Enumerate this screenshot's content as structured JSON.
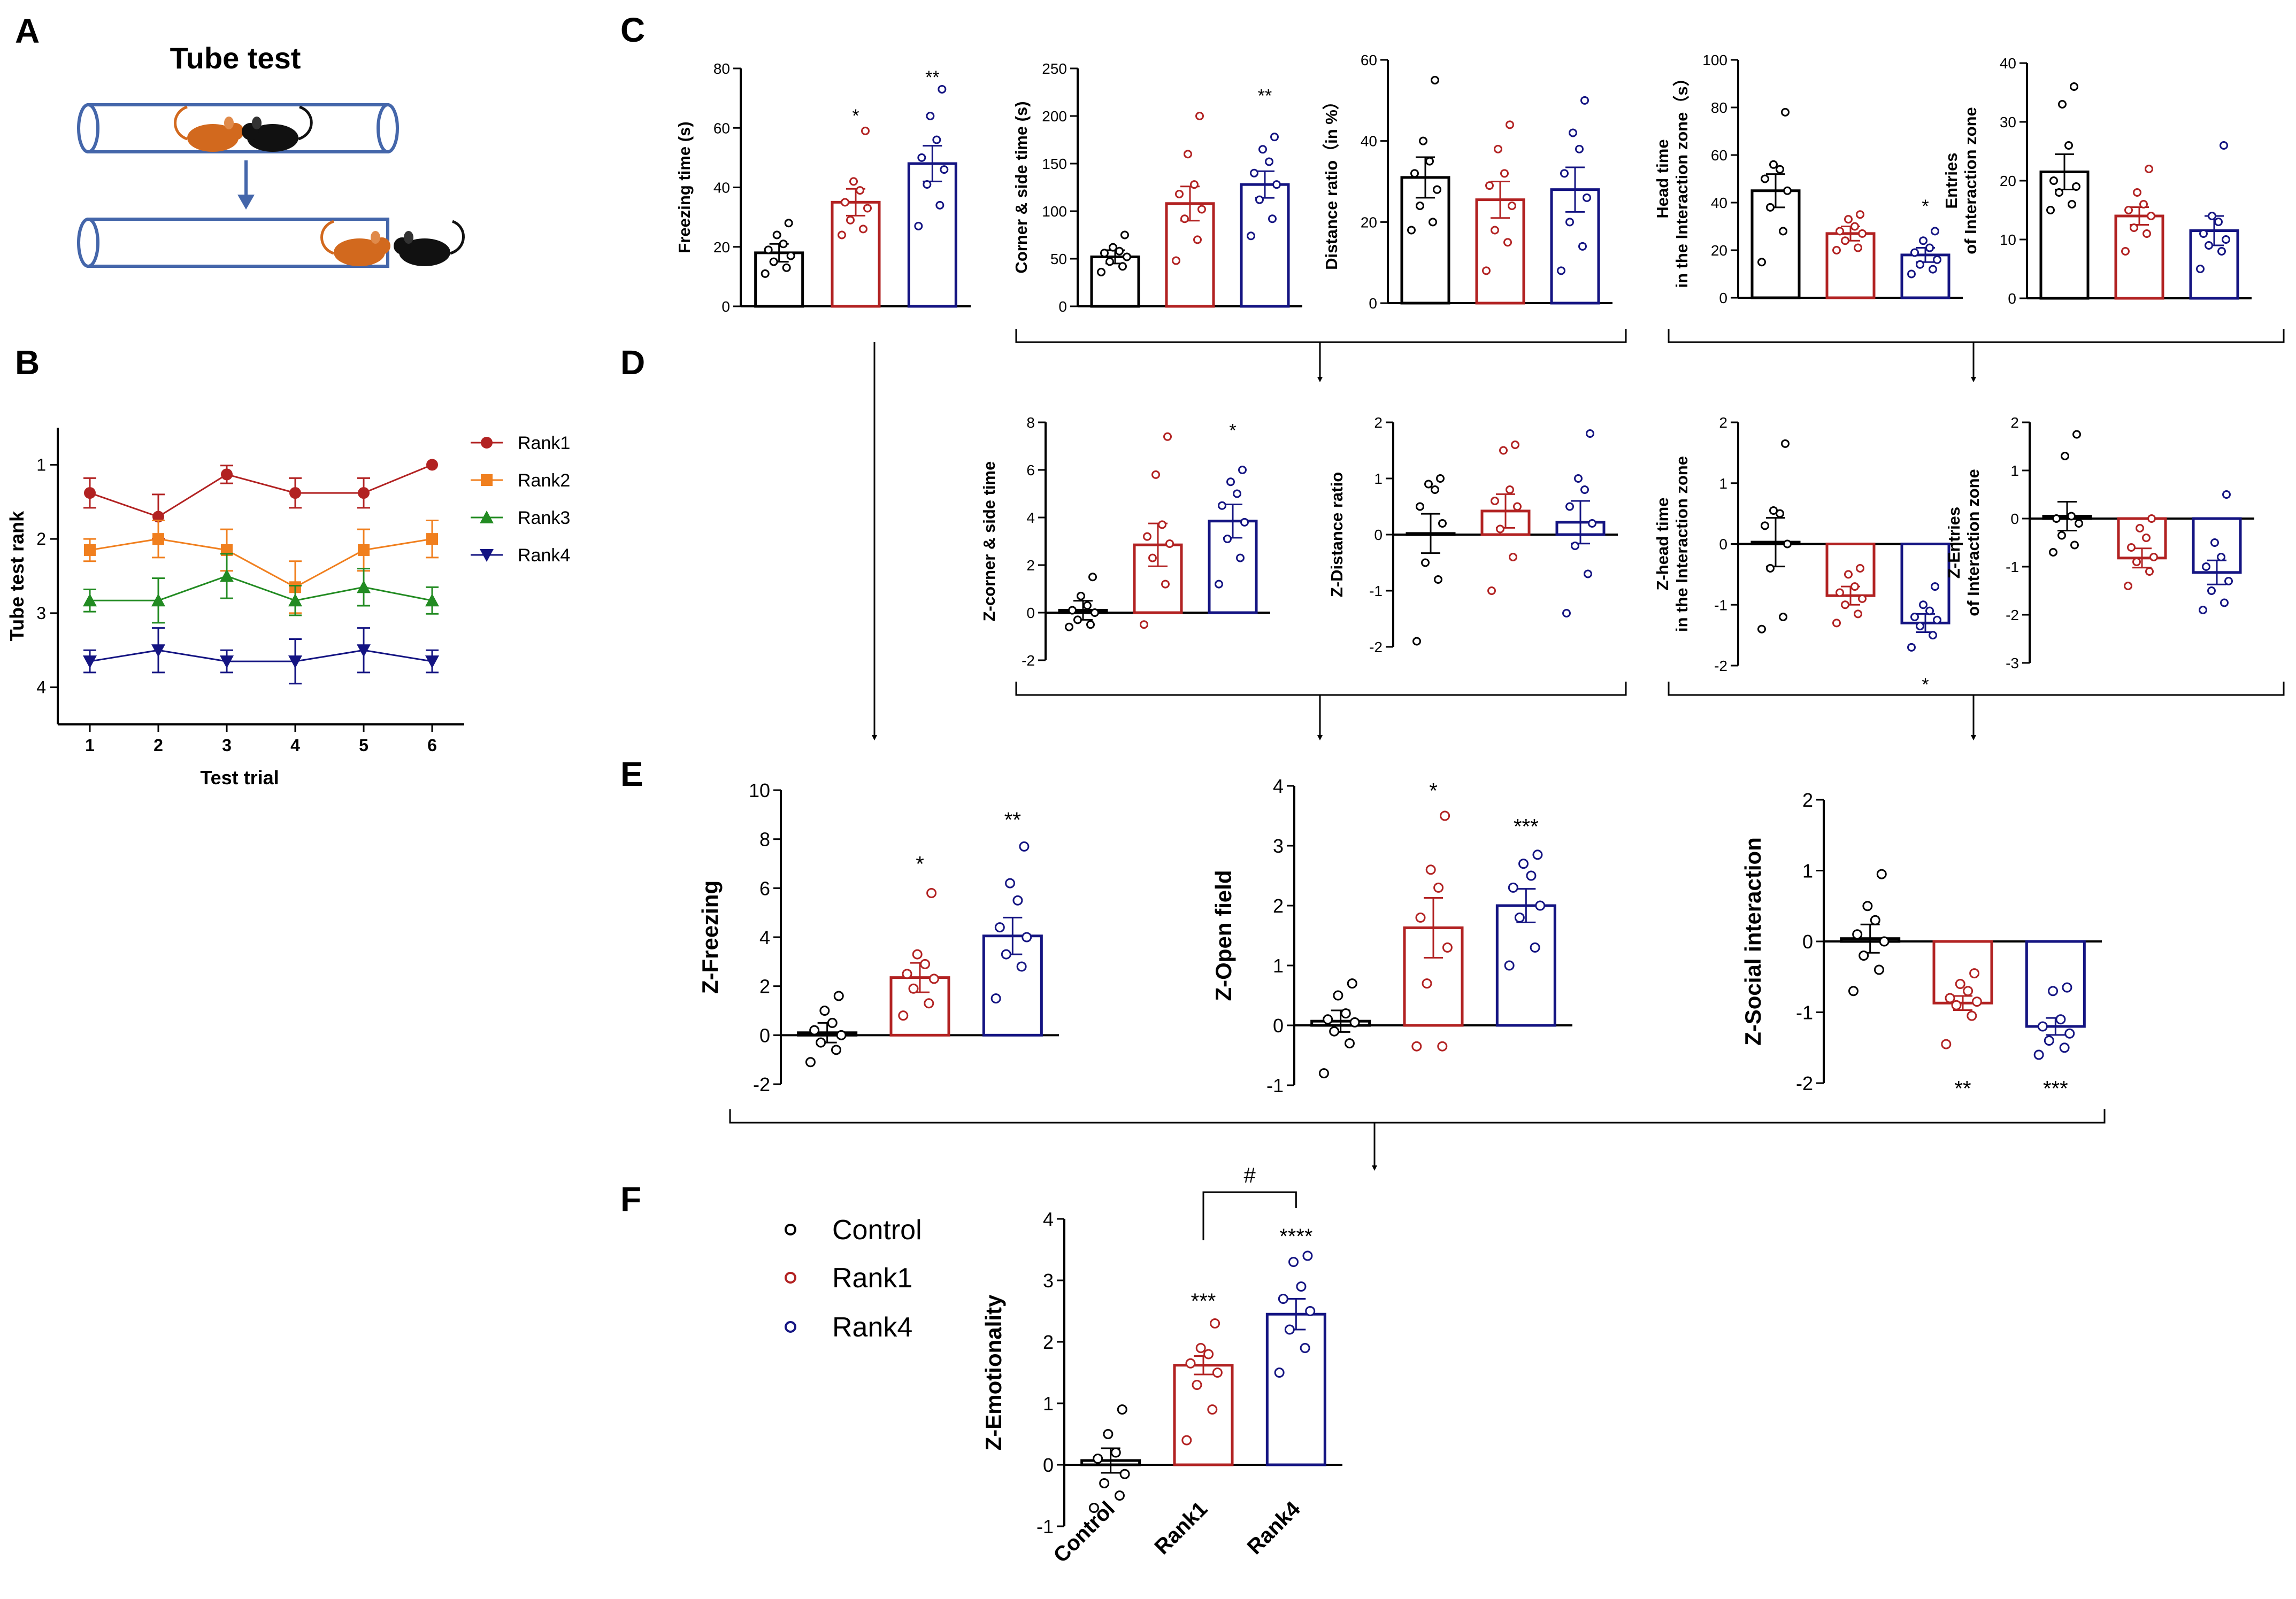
{
  "panel_labels": {
    "A": "A",
    "B": "B",
    "C": "C",
    "D": "D",
    "E": "E",
    "F": "F"
  },
  "tube_test": {
    "title": "Tube test"
  },
  "colors": {
    "control": "#000000",
    "rank1": "#b22222",
    "rank2": "#f07f1e",
    "rank3": "#228b22",
    "rank4": "#141482"
  },
  "legend_groups": [
    "Control",
    "Rank1",
    "Rank4"
  ],
  "chart_data": [
    {
      "id": "B",
      "type": "line",
      "xlabel": "Test trial",
      "ylabel": "Tube test rank",
      "x": [
        1,
        2,
        3,
        4,
        5,
        6
      ],
      "xticks": [
        "1",
        "2",
        "3",
        "4",
        "5",
        "6"
      ],
      "yticks": [
        "1",
        "2",
        "3",
        "4"
      ],
      "ylim": [
        4.5,
        0.5
      ],
      "y_inverted": true,
      "series": [
        {
          "name": "Rank1",
          "color_key": "rank1",
          "marker": "circle",
          "values": [
            1.38,
            1.7,
            1.13,
            1.38,
            1.38,
            1.0
          ],
          "err": [
            0.2,
            0.3,
            0.12,
            0.2,
            0.2,
            0.0
          ]
        },
        {
          "name": "Rank2",
          "color_key": "rank2",
          "marker": "square",
          "values": [
            2.15,
            2.0,
            2.15,
            2.65,
            2.15,
            2.0
          ],
          "err": [
            0.15,
            0.25,
            0.28,
            0.35,
            0.28,
            0.25
          ]
        },
        {
          "name": "Rank3",
          "color_key": "rank3",
          "marker": "triangle",
          "values": [
            2.83,
            2.83,
            2.5,
            2.83,
            2.65,
            2.83
          ],
          "err": [
            0.15,
            0.3,
            0.3,
            0.2,
            0.25,
            0.18
          ]
        },
        {
          "name": "Rank4",
          "color_key": "rank4",
          "marker": "triangle-down",
          "values": [
            3.65,
            3.5,
            3.65,
            3.65,
            3.5,
            3.65
          ],
          "err": [
            0.15,
            0.3,
            0.15,
            0.3,
            0.3,
            0.15
          ]
        }
      ]
    },
    {
      "id": "C1",
      "type": "bar",
      "ylabel": [
        "Freezing time (s)"
      ],
      "ylim": [
        0,
        80
      ],
      "yticks": [
        "0",
        "20",
        "40",
        "60",
        "80"
      ],
      "categories": [
        "Control",
        "Rank1",
        "Rank4"
      ],
      "values": [
        18,
        35,
        48
      ],
      "sem": [
        3,
        4.5,
        6
      ],
      "points": [
        [
          11,
          13,
          15,
          17,
          19,
          21,
          24,
          28
        ],
        [
          24,
          26,
          29,
          33,
          35,
          39,
          42,
          59
        ],
        [
          27,
          34,
          41,
          46,
          50,
          56,
          64,
          73
        ]
      ],
      "sig": [
        "",
        "*",
        "**"
      ],
      "sig_val": [
        0,
        62,
        75
      ]
    },
    {
      "id": "C2",
      "type": "bar",
      "ylabel": [
        "Corner & side time (s)"
      ],
      "ylim": [
        0,
        250
      ],
      "yticks": [
        "0",
        "50",
        "100",
        "150",
        "200",
        "250"
      ],
      "categories": [
        "Control",
        "Rank1",
        "Rank4"
      ],
      "values": [
        52,
        108,
        128
      ],
      "sem": [
        7,
        18,
        14
      ],
      "points": [
        [
          36,
          42,
          47,
          52,
          56,
          58,
          62,
          75
        ],
        [
          48,
          70,
          92,
          102,
          118,
          128,
          160,
          200
        ],
        [
          74,
          92,
          112,
          128,
          140,
          152,
          165,
          178
        ]
      ],
      "sig": [
        "",
        "",
        "**"
      ],
      "sig_val": [
        0,
        0,
        215
      ]
    },
    {
      "id": "C3",
      "type": "bar",
      "ylabel": [
        "Distance ratio（in %）"
      ],
      "ylim": [
        0,
        60
      ],
      "yticks": [
        "0",
        "20",
        "40",
        "60"
      ],
      "categories": [
        "Control",
        "Rank1",
        "Rank4"
      ],
      "values": [
        31,
        25.5,
        28
      ],
      "sem": [
        5,
        4.5,
        5.5
      ],
      "points": [
        [
          18,
          20,
          24,
          28,
          32,
          35,
          40,
          55
        ],
        [
          8,
          15,
          18,
          24,
          29,
          32,
          38,
          44
        ],
        [
          8,
          14,
          20,
          26,
          32,
          38,
          42,
          50
        ]
      ],
      "sig": [
        "",
        "",
        ""
      ],
      "sig_val": [
        0,
        0,
        0
      ]
    },
    {
      "id": "C4",
      "type": "bar",
      "ylabel": [
        "Head time",
        "in the Interaction zone（s）"
      ],
      "ylim": [
        0,
        100
      ],
      "yticks": [
        "0",
        "20",
        "40",
        "60",
        "80",
        "100"
      ],
      "categories": [
        "Control",
        "Rank1",
        "Rank4"
      ],
      "values": [
        45,
        27,
        18
      ],
      "sem": [
        7,
        3,
        3
      ],
      "points": [
        [
          15,
          28,
          38,
          45,
          50,
          54,
          56,
          78
        ],
        [
          20,
          21,
          24,
          27,
          28,
          30,
          33,
          35
        ],
        [
          10,
          12,
          14,
          16,
          19,
          21,
          24,
          28
        ]
      ],
      "sig": [
        "",
        "",
        "*"
      ],
      "sig_val": [
        0,
        0,
        36
      ]
    },
    {
      "id": "C5",
      "type": "bar",
      "ylabel": [
        "Entries",
        "of Interaction zone"
      ],
      "ylim": [
        0,
        40
      ],
      "yticks": [
        "0",
        "10",
        "20",
        "30",
        "40"
      ],
      "categories": [
        "Control",
        "Rank1",
        "Rank4"
      ],
      "values": [
        21.5,
        14,
        11.5
      ],
      "sem": [
        3,
        1.5,
        2.5
      ],
      "points": [
        [
          15,
          16,
          18,
          19,
          20,
          26,
          33,
          36
        ],
        [
          8,
          11,
          12,
          14,
          15,
          16,
          18,
          22
        ],
        [
          5,
          8,
          9,
          10,
          11,
          13,
          14,
          26
        ]
      ],
      "sig": [
        "",
        "",
        ""
      ],
      "sig_val": [
        0,
        0,
        0
      ]
    },
    {
      "id": "D1",
      "type": "bar",
      "ylabel": [
        "Z-corner & side time"
      ],
      "ylim": [
        -2,
        8
      ],
      "yticks": [
        "-2",
        "0",
        "2",
        "4",
        "6",
        "8"
      ],
      "categories": [
        "Control",
        "Rank1",
        "Rank4"
      ],
      "values": [
        0.1,
        2.85,
        3.85
      ],
      "sem": [
        0.4,
        0.9,
        0.7
      ],
      "points": [
        [
          -0.6,
          -0.5,
          -0.3,
          0,
          0.1,
          0.3,
          0.7,
          1.5
        ],
        [
          -0.5,
          1.2,
          2.3,
          2.9,
          3.2,
          3.7,
          5.8,
          7.4
        ],
        [
          1.2,
          2.3,
          3.1,
          3.8,
          4.5,
          5.0,
          5.5,
          6.0
        ]
      ],
      "sig": [
        "",
        "",
        "*"
      ],
      "sig_val": [
        0,
        0,
        7.4
      ]
    },
    {
      "id": "D2",
      "type": "bar",
      "ylabel": [
        "Z-Distance ratio"
      ],
      "ylim": [
        -2,
        2
      ],
      "yticks": [
        "-2",
        "-1",
        "0",
        "1",
        "2"
      ],
      "categories": [
        "Control",
        "Rank1",
        "Rank4"
      ],
      "values": [
        0.02,
        0.42,
        0.22
      ],
      "sem": [
        0.35,
        0.3,
        0.38
      ],
      "points": [
        [
          -1.9,
          -0.8,
          -0.5,
          0.2,
          0.5,
          0.8,
          0.9,
          1.0
        ],
        [
          -1.0,
          -0.4,
          0.1,
          0.5,
          0.6,
          0.8,
          1.5,
          1.6
        ],
        [
          -1.4,
          -0.7,
          -0.2,
          0.2,
          0.5,
          0.8,
          1.0,
          1.8
        ]
      ],
      "sig": [
        "",
        "",
        ""
      ],
      "sig_val": [
        0,
        0,
        0
      ]
    },
    {
      "id": "D3",
      "type": "bar",
      "ylabel": [
        "Z-head time",
        "in the Interaction zone"
      ],
      "ylim": [
        -2,
        2
      ],
      "yticks": [
        "-2",
        "-1",
        "0",
        "1",
        "2"
      ],
      "categories": [
        "Control",
        "Rank1",
        "Rank4"
      ],
      "values": [
        0.03,
        -0.85,
        -1.3
      ],
      "sem": [
        0.4,
        0.15,
        0.15
      ],
      "points": [
        [
          -1.4,
          -1.2,
          -0.4,
          0,
          0.3,
          0.5,
          0.55,
          1.65
        ],
        [
          -1.3,
          -1.15,
          -1.0,
          -0.9,
          -0.8,
          -0.7,
          -0.5,
          -0.4
        ],
        [
          -1.7,
          -1.5,
          -1.35,
          -1.25,
          -1.2,
          -1.1,
          -1.0,
          -0.7
        ]
      ],
      "sig": [
        "",
        "",
        "*"
      ],
      "sig_val": [
        0,
        0,
        -2.15
      ]
    },
    {
      "id": "D4",
      "type": "bar",
      "ylabel": [
        "Z-Entries",
        "of Interaction zone"
      ],
      "ylim": [
        -3,
        2
      ],
      "yticks": [
        "-3",
        "-2",
        "-1",
        "0",
        "1",
        "2"
      ],
      "categories": [
        "Control",
        "Rank1",
        "Rank4"
      ],
      "values": [
        0.05,
        -0.82,
        -1.12
      ],
      "sem": [
        0.3,
        0.2,
        0.25
      ],
      "points": [
        [
          -0.7,
          -0.55,
          -0.35,
          -0.1,
          0.0,
          0.05,
          1.3,
          1.75
        ],
        [
          -1.4,
          -1.1,
          -0.9,
          -0.8,
          -0.6,
          -0.4,
          -0.2,
          0.0
        ],
        [
          -1.9,
          -1.75,
          -1.5,
          -1.3,
          -1.0,
          -0.8,
          -0.5,
          0.5
        ]
      ],
      "sig": [
        "",
        "",
        ""
      ],
      "sig_val": [
        0,
        0,
        0
      ]
    },
    {
      "id": "E1",
      "type": "bar",
      "ylabel": [
        "Z-Freezing"
      ],
      "ylim": [
        -2,
        10
      ],
      "yticks": [
        "-2",
        "0",
        "2",
        "4",
        "6",
        "8",
        "10"
      ],
      "categories": [
        "Control",
        "Rank1",
        "Rank4"
      ],
      "values": [
        0.1,
        2.35,
        4.05
      ],
      "sem": [
        0.4,
        0.6,
        0.75
      ],
      "points": [
        [
          -1.1,
          -0.6,
          -0.3,
          0,
          0.2,
          0.5,
          1.0,
          1.6
        ],
        [
          0.8,
          1.3,
          1.9,
          2.3,
          2.5,
          2.9,
          3.3,
          5.8
        ],
        [
          1.5,
          2.8,
          3.3,
          4.0,
          4.4,
          5.5,
          6.2,
          7.7
        ]
      ],
      "sig": [
        "",
        "*",
        "**"
      ],
      "sig_val": [
        0,
        6.7,
        8.5
      ]
    },
    {
      "id": "E2",
      "type": "bar",
      "ylabel": [
        "Z-Open field"
      ],
      "ylim": [
        -1,
        4
      ],
      "yticks": [
        "-1",
        "0",
        "1",
        "2",
        "3",
        "4"
      ],
      "categories": [
        "Control",
        "Rank1",
        "Rank4"
      ],
      "values": [
        0.07,
        1.63,
        2.0
      ],
      "sem": [
        0.18,
        0.5,
        0.28
      ],
      "points": [
        [
          -0.8,
          -0.3,
          -0.1,
          0.05,
          0.1,
          0.2,
          0.5,
          0.7
        ],
        [
          -0.35,
          -0.35,
          0.7,
          1.3,
          1.8,
          2.3,
          2.6,
          3.5
        ],
        [
          1.0,
          1.3,
          1.8,
          2.0,
          2.3,
          2.5,
          2.7,
          2.85
        ]
      ],
      "sig": [
        "",
        "*",
        "***"
      ],
      "sig_val": [
        0,
        3.8,
        3.2
      ]
    },
    {
      "id": "E3",
      "type": "bar",
      "ylabel": [
        "Z-Social interaction"
      ],
      "ylim": [
        -2,
        2
      ],
      "yticks": [
        "-2",
        "-1",
        "0",
        "1",
        "2"
      ],
      "categories": [
        "Control",
        "Rank1",
        "Rank4"
      ],
      "values": [
        0.04,
        -0.87,
        -1.2
      ],
      "sem": [
        0.2,
        0.1,
        0.12
      ],
      "points": [
        [
          -0.7,
          -0.4,
          -0.2,
          0,
          0.1,
          0.3,
          0.5,
          0.95
        ],
        [
          -1.45,
          -1.05,
          -0.9,
          -0.85,
          -0.8,
          -0.7,
          -0.6,
          -0.45
        ],
        [
          -1.6,
          -1.5,
          -1.4,
          -1.3,
          -1.2,
          -1.1,
          -0.7,
          -0.65
        ]
      ],
      "sig": [
        "",
        "**",
        "***"
      ],
      "sig_val": [
        0,
        -1.95,
        -1.95
      ]
    },
    {
      "id": "F",
      "type": "bar",
      "ylabel": [
        "Z-Emotionality"
      ],
      "ylim": [
        -1,
        4
      ],
      "yticks": [
        "-1",
        "0",
        "1",
        "2",
        "3",
        "4"
      ],
      "categories": [
        "Control",
        "Rank1",
        "Rank4"
      ],
      "xticks": [
        "Control",
        "Rank1",
        "Rank4"
      ],
      "values": [
        0.07,
        1.62,
        2.45
      ],
      "sem": [
        0.2,
        0.15,
        0.25
      ],
      "points": [
        [
          -0.7,
          -0.5,
          -0.3,
          -0.15,
          0.1,
          0.2,
          0.5,
          0.9
        ],
        [
          0.4,
          0.9,
          1.3,
          1.5,
          1.65,
          1.8,
          1.9,
          2.3
        ],
        [
          1.5,
          1.9,
          2.2,
          2.5,
          2.7,
          2.9,
          3.3,
          3.4
        ]
      ],
      "sig": [
        "",
        "***",
        "****"
      ],
      "sig_val": [
        0,
        2.55,
        3.6
      ],
      "bracket_label": "#"
    }
  ]
}
